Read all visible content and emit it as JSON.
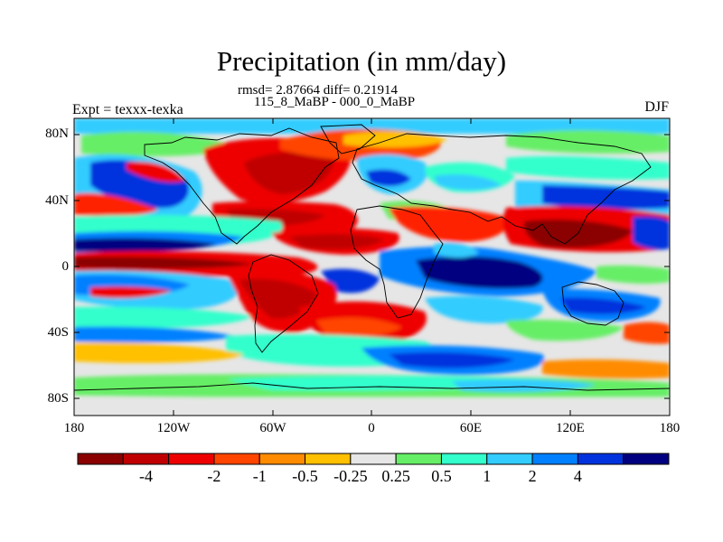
{
  "header": {
    "title": "Precipitation (in mm/day)",
    "stats": "rmsd= 2.87664 diff= 0.21914",
    "subtitle": "115_8_MaBP - 000_0_MaBP",
    "left_label": "Expt = texxx-texka",
    "right_label": "DJF"
  },
  "map": {
    "lat_ticks": [
      "80N",
      "40N",
      "0",
      "40S",
      "80S"
    ],
    "lon_ticks": [
      "180",
      "120W",
      "60W",
      "0",
      "60E",
      "120E",
      "180"
    ]
  },
  "colorbar": {
    "colors": [
      "#8b0000",
      "#c00000",
      "#ee0000",
      "#ff4500",
      "#ff8c00",
      "#ffc000",
      "#e6e6e6",
      "#66ee66",
      "#33ffcc",
      "#33ccff",
      "#0080ff",
      "#0033dd",
      "#000080"
    ],
    "labels": [
      "-4",
      "-2",
      "-1",
      "-0.5",
      "-0.25",
      "0.25",
      "0.5",
      "1",
      "2",
      "4"
    ]
  },
  "palette": {
    "dark_red": "#8b0000",
    "red": "#dd0000",
    "bright_red": "#ff2000",
    "orange_red": "#ff4500",
    "orange": "#ff8c00",
    "amber": "#ffc000",
    "neutral": "#e6e6e6",
    "green": "#66ee66",
    "aqua": "#33ffcc",
    "sky": "#33ccff",
    "blue": "#0080ff",
    "strong_blue": "#0033dd",
    "navy": "#000080"
  }
}
